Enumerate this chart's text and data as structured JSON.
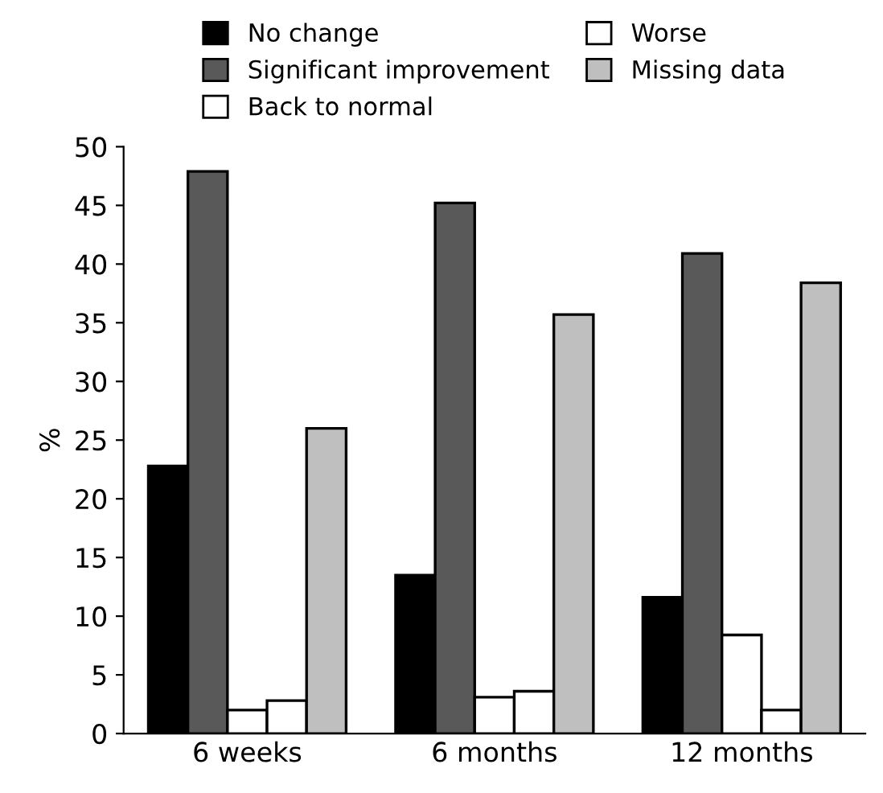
{
  "chart_data": {
    "type": "bar",
    "ylabel": "%",
    "categories": [
      "6 weeks",
      "6 months",
      "12 months"
    ],
    "series": [
      {
        "name": "No change",
        "color": "#000000",
        "values": [
          22.8,
          13.5,
          11.6
        ]
      },
      {
        "name": "Significant improvement",
        "color": "#595959",
        "values": [
          47.9,
          45.2,
          40.9
        ]
      },
      {
        "name": "Back to normal",
        "color": "#ffffff",
        "values": [
          2.0,
          3.1,
          8.4
        ]
      },
      {
        "name": "Worse",
        "color": "#ffffff",
        "values": [
          2.8,
          3.6,
          2.0
        ]
      },
      {
        "name": "Missing data",
        "color": "#bfbfbf",
        "values": [
          26.0,
          35.7,
          38.4
        ]
      }
    ],
    "ylim": [
      0,
      50
    ],
    "yticks": [
      0,
      5,
      10,
      15,
      20,
      25,
      30,
      35,
      40,
      45,
      50
    ],
    "grid": false,
    "legend": "top"
  }
}
